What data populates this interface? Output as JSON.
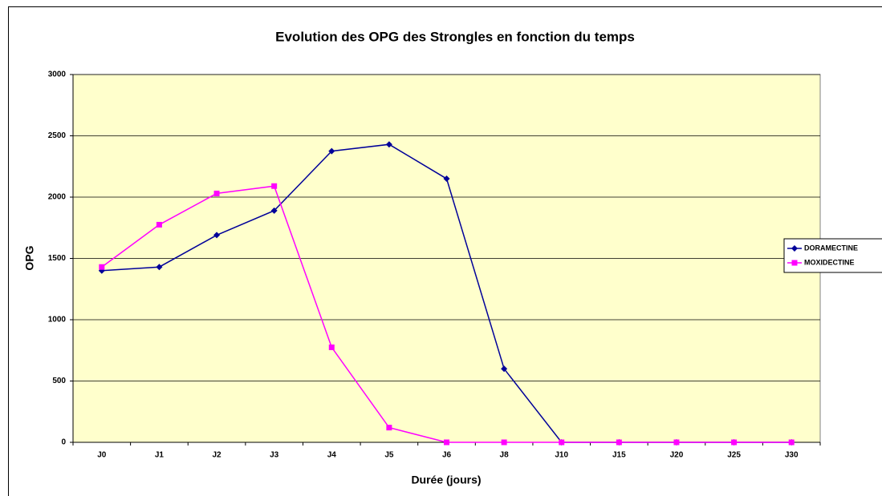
{
  "chart_data": {
    "type": "line",
    "title": "Evolution des OPG des Strongles en fonction du temps",
    "x_label": "Durée (jours)",
    "y_label": "OPG",
    "categories": [
      "J0",
      "J1",
      "J2",
      "J3",
      "J4",
      "J5",
      "J6",
      "J8",
      "J10",
      "J15",
      "J20",
      "J25",
      "J30"
    ],
    "series": [
      {
        "name": "DORAMECTINE",
        "color": "#000099",
        "marker": "diamond",
        "values": [
          1400,
          1430,
          1690,
          1890,
          2375,
          2430,
          2150,
          600,
          0,
          0,
          0,
          0,
          0
        ]
      },
      {
        "name": "MOXIDECTINE",
        "color": "#ff00ff",
        "marker": "square",
        "values": [
          1430,
          1775,
          2030,
          2090,
          775,
          120,
          0,
          0,
          0,
          0,
          0,
          0,
          0
        ]
      }
    ],
    "ylim": [
      0,
      3000
    ],
    "yticks": [
      0,
      500,
      1000,
      1500,
      2000,
      2500,
      3000
    ],
    "grid": true,
    "legend": "right",
    "plot_background": "#ffffcc"
  }
}
